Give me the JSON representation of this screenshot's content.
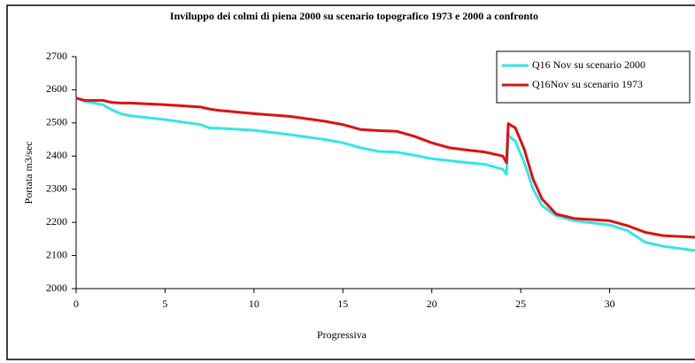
{
  "chart_data": {
    "type": "line",
    "title": "Inviluppo dei colmi di piena 2000 su scenario topografico 1973 e 2000 a confronto",
    "xlabel": "Progressiva",
    "ylabel": "Portata m3/sec",
    "x": [
      0,
      0.5,
      1,
      1.5,
      2,
      2.5,
      3,
      5,
      7,
      7.5,
      8,
      10,
      12,
      14,
      15,
      16,
      17,
      18,
      19,
      20,
      21,
      22,
      23,
      24,
      24.2,
      24.3,
      24.7,
      25.2,
      25.7,
      26.2,
      27,
      28,
      30,
      31,
      32,
      33,
      34.8
    ],
    "series": [
      {
        "name": "Q16 Nov su scenario 2000",
        "color": "#33e6e6",
        "values": [
          2575,
          2565,
          2560,
          2555,
          2540,
          2528,
          2522,
          2510,
          2495,
          2485,
          2484,
          2478,
          2465,
          2450,
          2440,
          2425,
          2414,
          2412,
          2403,
          2392,
          2386,
          2380,
          2375,
          2360,
          2345,
          2462,
          2445,
          2380,
          2300,
          2250,
          2220,
          2205,
          2192,
          2175,
          2140,
          2128,
          2115
        ]
      },
      {
        "name": "Q16Nov su scenario 1973",
        "color": "#dd1111",
        "values": [
          2575,
          2568,
          2568,
          2568,
          2562,
          2560,
          2560,
          2555,
          2548,
          2542,
          2538,
          2528,
          2520,
          2505,
          2495,
          2480,
          2477,
          2475,
          2460,
          2440,
          2425,
          2418,
          2412,
          2400,
          2380,
          2498,
          2485,
          2420,
          2330,
          2270,
          2225,
          2212,
          2205,
          2190,
          2170,
          2160,
          2155
        ]
      }
    ],
    "xlim": [
      0,
      34.8
    ],
    "xticks": [
      0,
      5,
      10,
      15,
      20,
      25,
      30
    ],
    "ylim": [
      2000,
      2700
    ],
    "yticks": [
      2000,
      2100,
      2200,
      2300,
      2400,
      2500,
      2600,
      2700
    ],
    "grid": false,
    "legend": "upper right"
  }
}
